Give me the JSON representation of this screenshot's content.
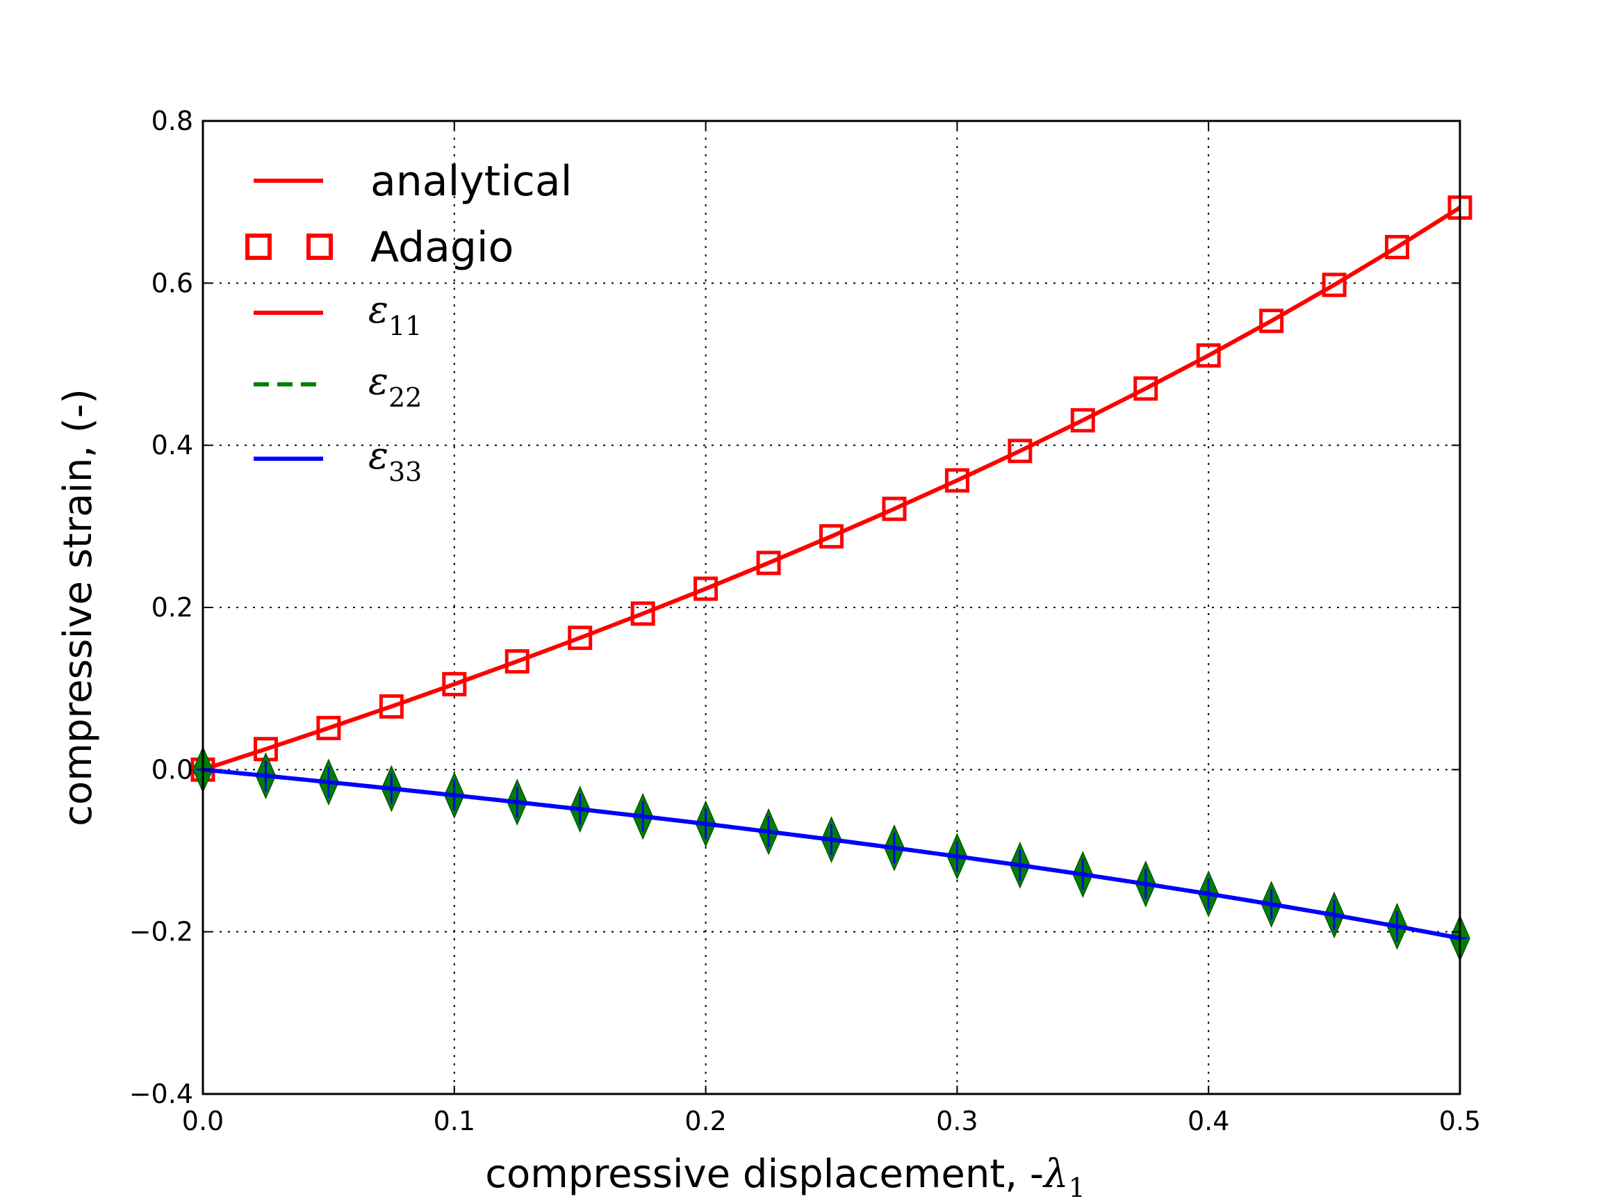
{
  "chart_data": {
    "type": "line",
    "title": "",
    "xlabel": "compressive displacement, -",
    "xlabel_symbol": "λ",
    "xlabel_subscript": "1",
    "ylabel": "compressive strain, (-)",
    "xlim": [
      0.0,
      0.5
    ],
    "ylim": [
      -0.4,
      0.8
    ],
    "grid": true,
    "x_ticks": [
      0.0,
      0.1,
      0.2,
      0.3,
      0.4,
      0.5
    ],
    "x_tick_labels": [
      "0.0",
      "0.1",
      "0.2",
      "0.3",
      "0.4",
      "0.5"
    ],
    "y_ticks": [
      -0.4,
      -0.2,
      0.0,
      0.2,
      0.4,
      0.6,
      0.8
    ],
    "y_tick_labels": [
      "−0.4",
      "−0.2",
      "0.0",
      "0.2",
      "0.4",
      "0.6",
      "0.8"
    ],
    "legend_position": "top-left",
    "legend": [
      {
        "label": "analytical",
        "kind": "text",
        "color": "#ff0000",
        "style": "solid"
      },
      {
        "label": "Adagio",
        "kind": "text",
        "color": "#ff0000",
        "style": "square-markers"
      },
      {
        "label": "ε",
        "subscript": "11",
        "kind": "math",
        "color": "#ff0000",
        "style": "solid"
      },
      {
        "label": "ε",
        "subscript": "22",
        "kind": "math",
        "color": "#008000",
        "style": "dashed"
      },
      {
        "label": "ε",
        "subscript": "33",
        "kind": "math",
        "color": "#0000ff",
        "style": "solid"
      }
    ],
    "x": [
      0.0,
      0.025,
      0.05,
      0.075,
      0.1,
      0.125,
      0.15,
      0.175,
      0.2,
      0.225,
      0.25,
      0.275,
      0.3,
      0.325,
      0.35,
      0.375,
      0.4,
      0.425,
      0.45,
      0.475,
      0.5
    ],
    "series": [
      {
        "name": "ε11 analytical",
        "color": "#ff0000",
        "line": "solid",
        "values": [
          0.0,
          0.0253,
          0.0513,
          0.0779,
          0.1054,
          0.1335,
          0.1625,
          0.1924,
          0.2231,
          0.2549,
          0.2877,
          0.3216,
          0.3567,
          0.393,
          0.4308,
          0.47,
          0.5108,
          0.5534,
          0.5978,
          0.6444,
          0.6931
        ]
      },
      {
        "name": "ε11 Adagio",
        "color": "#ff0000",
        "marker": "square",
        "values": [
          0.0,
          0.0253,
          0.0513,
          0.0779,
          0.1054,
          0.1335,
          0.1625,
          0.1924,
          0.2231,
          0.2549,
          0.2877,
          0.3216,
          0.3567,
          0.393,
          0.4308,
          0.47,
          0.5108,
          0.5534,
          0.5978,
          0.6444,
          0.6931
        ]
      },
      {
        "name": "ε22 Adagio",
        "color": "#008000",
        "line": "dashed",
        "marker": "diamond",
        "values": [
          0.0,
          -0.0076,
          -0.0154,
          -0.0234,
          -0.0316,
          -0.0401,
          -0.0488,
          -0.0577,
          -0.0669,
          -0.0765,
          -0.0863,
          -0.0965,
          -0.107,
          -0.1179,
          -0.1292,
          -0.141,
          -0.1532,
          -0.166,
          -0.1793,
          -0.1933,
          -0.2079
        ]
      },
      {
        "name": "ε33 Adagio",
        "color": "#0000ff",
        "line": "solid",
        "marker": "plus",
        "values": [
          0.0,
          -0.0076,
          -0.0154,
          -0.0234,
          -0.0316,
          -0.0401,
          -0.0488,
          -0.0577,
          -0.0669,
          -0.0765,
          -0.0863,
          -0.0965,
          -0.107,
          -0.1179,
          -0.1292,
          -0.141,
          -0.1532,
          -0.166,
          -0.1793,
          -0.1933,
          -0.2079
        ]
      }
    ]
  }
}
